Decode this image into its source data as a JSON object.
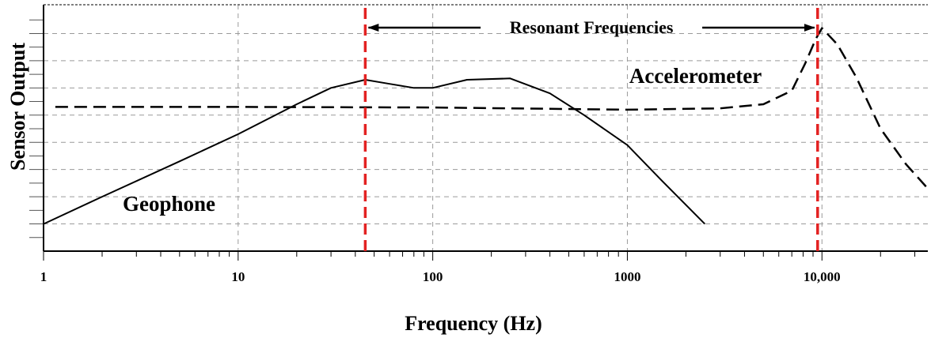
{
  "chart_data": {
    "type": "line",
    "title": "",
    "xlabel": "Frequency (Hz)",
    "ylabel": "Sensor Output",
    "x_scale": "log",
    "xlim": [
      1,
      35000
    ],
    "ylim": [
      0,
      9
    ],
    "x_tick_values": [
      1,
      10,
      100,
      1000,
      10000
    ],
    "x_tick_labels": [
      "1",
      "10",
      "100",
      "1000",
      "10,000"
    ],
    "y_tick_labels_shown": false,
    "grid": true,
    "series": [
      {
        "name": "Geophone",
        "style": "solid",
        "color": "#000000",
        "points": [
          [
            1,
            1.0
          ],
          [
            2,
            2.0
          ],
          [
            5,
            3.3
          ],
          [
            10,
            4.3
          ],
          [
            20,
            5.4
          ],
          [
            30,
            6.0
          ],
          [
            45,
            6.3
          ],
          [
            60,
            6.15
          ],
          [
            80,
            6.0
          ],
          [
            100,
            6.0
          ],
          [
            150,
            6.3
          ],
          [
            250,
            6.35
          ],
          [
            400,
            5.8
          ],
          [
            600,
            5.0
          ],
          [
            1000,
            3.9
          ],
          [
            1500,
            2.6
          ],
          [
            2500,
            1.0
          ]
        ]
      },
      {
        "name": "Accelerometer",
        "style": "dashed",
        "color": "#000000",
        "points": [
          [
            1.15,
            5.3
          ],
          [
            10,
            5.3
          ],
          [
            100,
            5.28
          ],
          [
            1000,
            5.2
          ],
          [
            3000,
            5.25
          ],
          [
            5000,
            5.4
          ],
          [
            7000,
            5.9
          ],
          [
            8200,
            6.9
          ],
          [
            9300,
            7.8
          ],
          [
            10000,
            8.2
          ],
          [
            12000,
            7.6
          ],
          [
            15000,
            6.4
          ],
          [
            20000,
            4.5
          ],
          [
            27000,
            3.2
          ],
          [
            35000,
            2.3
          ]
        ]
      }
    ],
    "reference_lines": [
      {
        "x": 45,
        "style": "dashed",
        "color": "#e32222"
      },
      {
        "x": 9500,
        "style": "dashed",
        "color": "#e32222"
      }
    ],
    "annotations": [
      {
        "text": "Resonant Frequencies",
        "type": "double-arrow",
        "x_from": 45,
        "x_to": 9500
      },
      {
        "text": "Accelerometer",
        "near_series": "Accelerometer"
      },
      {
        "text": "Geophone",
        "near_series": "Geophone"
      }
    ]
  }
}
